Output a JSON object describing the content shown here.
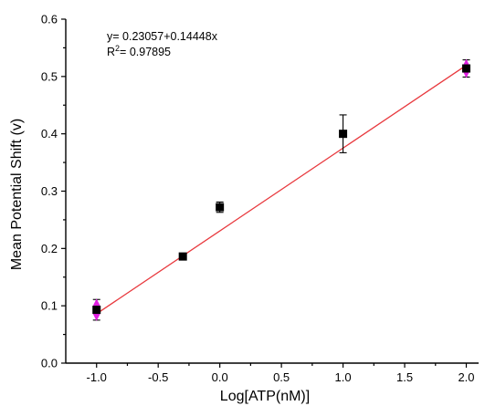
{
  "chart_data": {
    "type": "scatter",
    "xlabel": "Log[ATP(nM)]",
    "ylabel": "Mean Potential Shift (v)",
    "xlim": [
      -1.25,
      2.1
    ],
    "ylim": [
      0.0,
      0.6
    ],
    "x_ticks": [
      -1.0,
      -0.5,
      0.0,
      0.5,
      1.0,
      1.5,
      2.0
    ],
    "x_tick_labels": [
      "-1.0",
      "-0.5",
      "0.0",
      "0.5",
      "1.0",
      "1.5",
      "2.0"
    ],
    "y_ticks": [
      0.0,
      0.1,
      0.2,
      0.3,
      0.4,
      0.5,
      0.6
    ],
    "y_tick_labels": [
      "0.0",
      "0.1",
      "0.2",
      "0.3",
      "0.4",
      "0.5",
      "0.6"
    ],
    "grid": false,
    "points": [
      {
        "x": -1.0,
        "y": 0.093,
        "err": 0.018
      },
      {
        "x": -0.3,
        "y": 0.186,
        "err": 0.004
      },
      {
        "x": 0.0,
        "y": 0.272,
        "err": 0.009
      },
      {
        "x": 1.0,
        "y": 0.4,
        "err": 0.033
      },
      {
        "x": 2.0,
        "y": 0.514,
        "err": 0.015
      }
    ],
    "fit": {
      "intercept": 0.23057,
      "slope": 0.14448,
      "x_range": [
        -1.0,
        2.0
      ],
      "color": "#e8383d"
    },
    "annotation": {
      "equation": "y= 0.23057+0.14448x",
      "r2_prefix": "R",
      "r2_sup": "2",
      "r2_value": "= 0.97895"
    },
    "colors": {
      "points": "#000000",
      "fit_line": "#e8383d",
      "error_markers": "#e020e0"
    }
  }
}
